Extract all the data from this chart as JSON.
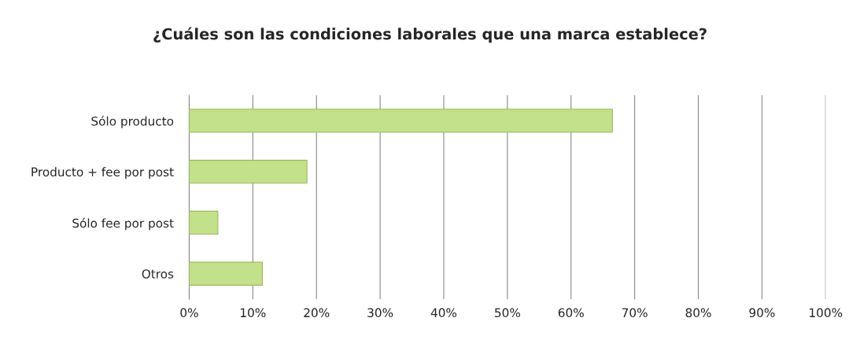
{
  "chart_data": {
    "type": "bar",
    "orientation": "horizontal",
    "title": "¿Cuáles son las condiciones laborales que una marca establece?",
    "categories": [
      "Sólo producto",
      "Producto + fee por post",
      "Sólo fee por post",
      "Otros"
    ],
    "values": [
      66.5,
      18.5,
      4.5,
      11.5
    ],
    "color": "#c3e08a",
    "xlim": [
      0,
      100
    ],
    "xticks": [
      {
        "value": 0,
        "label": "0%"
      },
      {
        "value": 10,
        "label": "10%"
      },
      {
        "value": 20,
        "label": "20%"
      },
      {
        "value": 30,
        "label": "30%"
      },
      {
        "value": 40,
        "label": "40%"
      },
      {
        "value": 50,
        "label": "50%"
      },
      {
        "value": 60,
        "label": "60%"
      },
      {
        "value": 70,
        "label": "70%"
      },
      {
        "value": 80,
        "label": "80%"
      },
      {
        "value": 90,
        "label": "90%"
      },
      {
        "value": 100,
        "label": "100%"
      }
    ],
    "grid": "x",
    "legend": false
  }
}
